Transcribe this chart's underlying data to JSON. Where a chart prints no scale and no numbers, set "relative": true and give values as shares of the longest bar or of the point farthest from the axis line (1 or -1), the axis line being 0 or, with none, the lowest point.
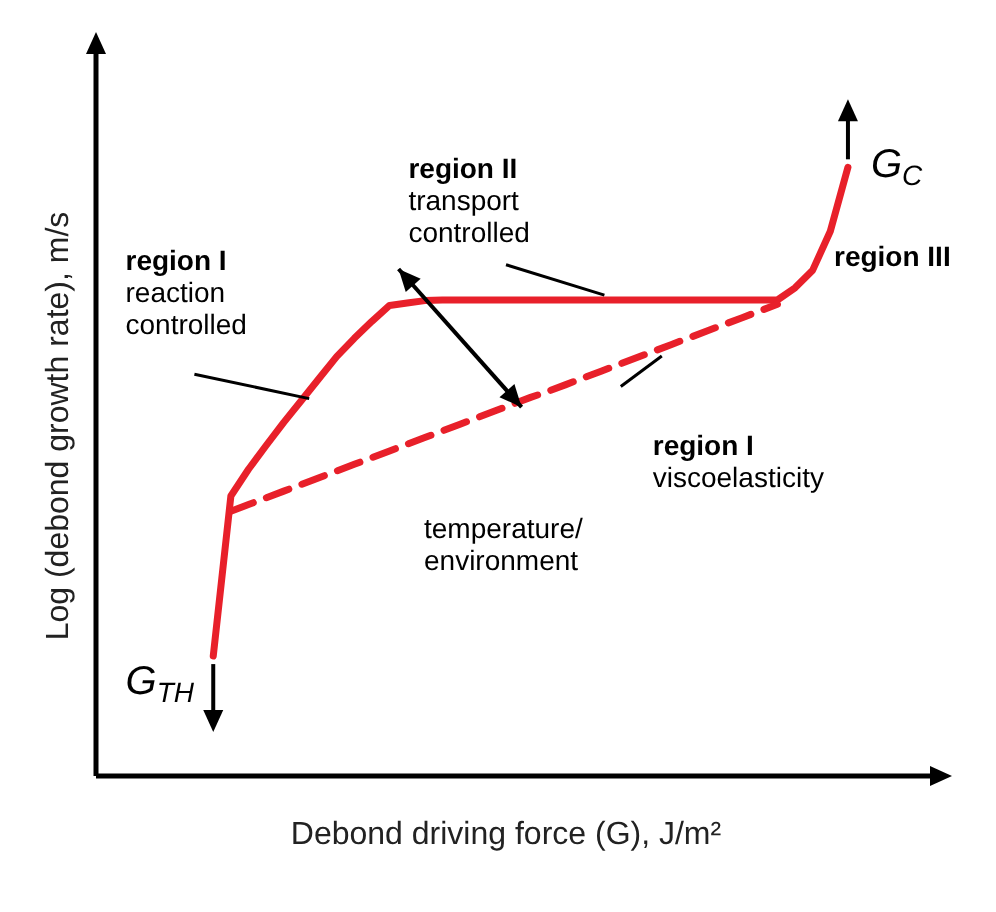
{
  "chart_data": {
    "type": "line",
    "relative": true,
    "xlabel": "Debond driving force (G), J/m²",
    "ylabel": "Log (debond growth rate), m/s",
    "marker": "none",
    "categories": [
      null,
      null,
      null,
      null,
      null,
      null,
      null,
      null,
      null,
      null,
      null,
      null,
      null,
      null,
      null,
      null,
      null,
      null,
      null,
      null,
      null,
      null,
      null,
      null,
      null,
      null,
      null,
      null,
      null,
      null,
      null,
      null,
      null,
      null,
      null,
      null,
      null
    ],
    "series": [
      {
        "color": "#e8202a",
        "line_style": "solid",
        "values": [
          0.197,
          0.46,
          0.504,
          0.543,
          0.581,
          0.617,
          0.653,
          0.689,
          0.719,
          0.747,
          0.773,
          0.777,
          0.781,
          0.782,
          0.782,
          0.782,
          0.782,
          0.782,
          0.782,
          0.782,
          0.782,
          0.782,
          0.782,
          0.782,
          0.782,
          0.782,
          0.782,
          0.782,
          0.782,
          0.782,
          0.782,
          0.782,
          0.782,
          0.802,
          0.831,
          0.895,
          1
        ]
      },
      {
        "color": "#e8202a",
        "line_style": "dashed",
        "values": [
          null,
          0.435,
          0.446,
          0.457,
          0.468,
          0.479,
          0.49,
          0.501,
          0.512,
          0.523,
          0.534,
          0.545,
          0.556,
          0.567,
          0.578,
          0.589,
          0.6,
          0.611,
          0.622,
          0.632,
          0.643,
          0.654,
          0.665,
          0.676,
          0.687,
          0.698,
          0.709,
          0.72,
          0.731,
          0.742,
          0.753,
          0.764,
          0.775,
          null,
          null,
          null,
          null
        ]
      }
    ],
    "annotations": [
      "region I\nreaction\ncontrolled",
      "region II\ntransport\ncontrolled",
      "region III",
      "region I\nviscoelasticity",
      "temperature/\nenvironment",
      "G$_{C}$",
      "G$_{TH}$"
    ]
  }
}
